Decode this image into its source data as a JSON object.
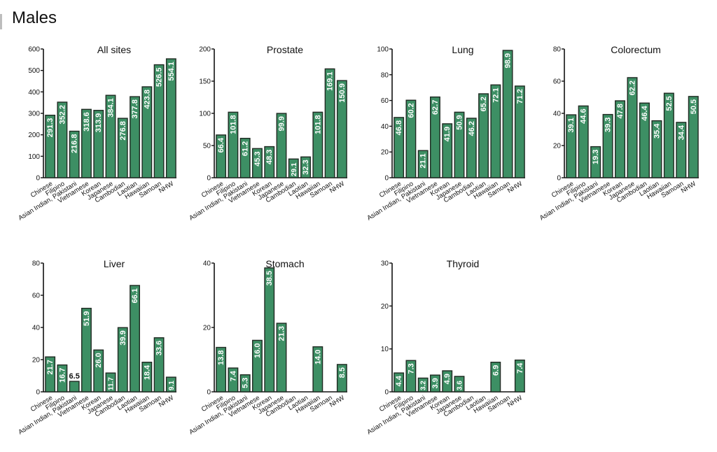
{
  "page_title": "Males",
  "colors": {
    "bar_fill": "#3d8f64",
    "bar_stroke": "#1f2a22",
    "label_inside": "#ffffff",
    "label_outside": "#111111",
    "axis": "#111111"
  },
  "categories": [
    "Chinese",
    "Filipino",
    "Asian Indian, Pakistani",
    "Vietnamese",
    "Korean",
    "Japanese",
    "Cambodian",
    "Laotian",
    "Hawaiian",
    "Samoan",
    "NHW"
  ],
  "chart_data": [
    {
      "type": "bar",
      "title": "All sites",
      "xlabel": "",
      "ylabel": "",
      "ylim": [
        0,
        600
      ],
      "yticks": [
        0,
        100,
        200,
        300,
        400,
        500,
        600
      ],
      "values": [
        291.3,
        352.2,
        216.8,
        318.6,
        313.9,
        384.1,
        276.8,
        377.8,
        423.8,
        526.5,
        554.1
      ],
      "labels": [
        "291.3",
        "352.2",
        "216.8",
        "318.6",
        "313.9",
        "384.1",
        "276.8",
        "377.8",
        "423.8",
        "526.5",
        "554.1"
      ]
    },
    {
      "type": "bar",
      "title": "Prostate",
      "xlabel": "",
      "ylabel": "",
      "ylim": [
        0,
        200
      ],
      "yticks": [
        0,
        50,
        100,
        150,
        200
      ],
      "values": [
        66.4,
        101.8,
        61.2,
        45.3,
        48.3,
        99.9,
        29.1,
        32.3,
        101.8,
        169.1,
        150.9
      ],
      "labels": [
        "66.4",
        "101.8",
        "61.2",
        "45.3",
        "48.3",
        "99.9",
        "29.1",
        "32.3",
        "101.8",
        "169.1",
        "150.9"
      ]
    },
    {
      "type": "bar",
      "title": "Lung",
      "xlabel": "",
      "ylabel": "",
      "ylim": [
        0,
        100
      ],
      "yticks": [
        0,
        20,
        40,
        60,
        80,
        100
      ],
      "values": [
        46.8,
        60.2,
        21.1,
        62.7,
        41.9,
        50.9,
        46.2,
        65.2,
        72.1,
        98.9,
        71.2
      ],
      "labels": [
        "46.8",
        "60.2",
        "21.1",
        "62.7",
        "41.9",
        "50.9",
        "46.2",
        "65.2",
        "72.1",
        "98.9",
        "71.2"
      ]
    },
    {
      "type": "bar",
      "title": "Colorectum",
      "xlabel": "",
      "ylabel": "",
      "ylim": [
        0,
        80
      ],
      "yticks": [
        0,
        20,
        40,
        60,
        80
      ],
      "values": [
        39.1,
        44.6,
        19.3,
        39.3,
        47.8,
        62.2,
        46.4,
        35.4,
        52.5,
        34.4,
        50.5
      ],
      "labels": [
        "39.1",
        "44.6",
        "19.3",
        "39.3",
        "47.8",
        "62.2",
        "46.4",
        "35.4",
        "52.5",
        "34.4",
        "50.5"
      ]
    },
    {
      "type": "bar",
      "title": "Liver",
      "xlabel": "",
      "ylabel": "",
      "ylim": [
        0,
        80
      ],
      "yticks": [
        0,
        20,
        40,
        60,
        80
      ],
      "values": [
        21.7,
        16.7,
        6.5,
        51.9,
        26.0,
        11.7,
        39.9,
        66.1,
        18.4,
        33.6,
        9.1
      ],
      "labels": [
        "21.7",
        "16.7",
        "6.5",
        "51.9",
        "26.0",
        "11.7",
        "39.9",
        "66.1",
        "18.4",
        "33.6",
        "9.1"
      ]
    },
    {
      "type": "bar",
      "title": "Stomach",
      "xlabel": "",
      "ylabel": "",
      "ylim": [
        0,
        40
      ],
      "yticks": [
        0,
        20,
        40
      ],
      "values": [
        13.8,
        7.4,
        5.3,
        16.0,
        38.5,
        21.3,
        null,
        null,
        14.0,
        null,
        8.5
      ],
      "labels": [
        "13.8",
        "7.4",
        "5.3",
        "16.0",
        "38.5",
        "21.3",
        null,
        null,
        "14.0",
        null,
        "8.5"
      ]
    },
    {
      "type": "bar",
      "title": "Thyroid",
      "xlabel": "",
      "ylabel": "",
      "ylim": [
        0,
        30
      ],
      "yticks": [
        0,
        10,
        20,
        30
      ],
      "values": [
        4.4,
        7.3,
        3.2,
        3.9,
        4.9,
        3.6,
        null,
        null,
        6.9,
        null,
        7.4
      ],
      "labels": [
        "4.4",
        "7.3",
        "3.2",
        "3.9",
        "4.9",
        "3.6",
        null,
        null,
        "6.9",
        null,
        "7.4"
      ]
    }
  ]
}
